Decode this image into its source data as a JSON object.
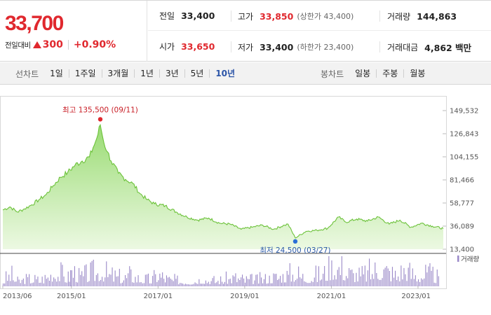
{
  "quote": {
    "price": "33,700",
    "change_label": "전일대비",
    "change_amount": "300",
    "change_percent": "+0.90%",
    "direction": "up",
    "up_color": "#e0282e"
  },
  "stats": {
    "prev_close": {
      "label": "전일",
      "value": "33,400"
    },
    "high": {
      "label": "고가",
      "value": "33,850",
      "sub": "(상한가 43,400)"
    },
    "volume": {
      "label": "거래량",
      "value": "144,863"
    },
    "open": {
      "label": "시가",
      "value": "33,650"
    },
    "low": {
      "label": "저가",
      "value": "33,400",
      "sub": "(하한가 23,400)"
    },
    "trade_value": {
      "label": "거래대금",
      "value": "4,862 백만"
    }
  },
  "line_tabs": {
    "title": "선차트",
    "items": [
      "1일",
      "1주일",
      "3개월",
      "1년",
      "3년",
      "5년",
      "10년"
    ],
    "active": "10년"
  },
  "candle_tabs": {
    "title": "봉차트",
    "items": [
      "일봉",
      "주봉",
      "월봉"
    ]
  },
  "chart_data": {
    "type": "area",
    "period": "10년",
    "y_ticks": [
      "149,532",
      "126,843",
      "104,155",
      "81,466",
      "58,777",
      "36,089",
      "13,400"
    ],
    "ylim": [
      13400,
      149532
    ],
    "x_ticks": [
      "2013/06",
      "2015/01",
      "2017/01",
      "2019/01",
      "2021/01",
      "2023/01"
    ],
    "xlim": [
      "2013/06",
      "2023/08"
    ],
    "high_annotation": "최고 135,500 (09/11)",
    "low_annotation": "최저 24,500 (03/27)",
    "high_point": {
      "date": "2015/09",
      "value": 135500
    },
    "low_point": {
      "date": "2020/03",
      "value": 24500
    },
    "volume_legend": "거래량",
    "line_color": "#6cc23a",
    "fill_color": "#aee28a",
    "volume_color": "#9a88c8",
    "series": [
      {
        "values": [
          [
            "2013/06",
            52000
          ],
          [
            "2013/08",
            55000
          ],
          [
            "2013/10",
            50000
          ],
          [
            "2013/12",
            53000
          ],
          [
            "2014/02",
            57000
          ],
          [
            "2014/04",
            62000
          ],
          [
            "2014/06",
            67000
          ],
          [
            "2014/08",
            76000
          ],
          [
            "2014/10",
            84000
          ],
          [
            "2014/12",
            89000
          ],
          [
            "2015/02",
            96000
          ],
          [
            "2015/04",
            100000
          ],
          [
            "2015/06",
            104000
          ],
          [
            "2015/07",
            113000
          ],
          [
            "2015/08",
            122000
          ],
          [
            "2015/09",
            135500
          ],
          [
            "2015/10",
            118000
          ],
          [
            "2015/11",
            109000
          ],
          [
            "2015/12",
            100000
          ],
          [
            "2016/02",
            88000
          ],
          [
            "2016/04",
            82000
          ],
          [
            "2016/06",
            78000
          ],
          [
            "2016/08",
            68000
          ],
          [
            "2016/10",
            62000
          ],
          [
            "2016/12",
            58000
          ],
          [
            "2017/03",
            56000
          ],
          [
            "2017/06",
            50000
          ],
          [
            "2017/09",
            45000
          ],
          [
            "2017/12",
            42000
          ],
          [
            "2018/03",
            44000
          ],
          [
            "2018/06",
            39000
          ],
          [
            "2018/09",
            38000
          ],
          [
            "2018/12",
            33000
          ],
          [
            "2019/03",
            35000
          ],
          [
            "2019/06",
            37000
          ],
          [
            "2019/09",
            33000
          ],
          [
            "2019/12",
            37000
          ],
          [
            "2020/01",
            38000
          ],
          [
            "2020/03",
            24500
          ],
          [
            "2020/06",
            31000
          ],
          [
            "2020/09",
            32000
          ],
          [
            "2020/12",
            34000
          ],
          [
            "2021/03",
            45000
          ],
          [
            "2021/05",
            40000
          ],
          [
            "2021/08",
            43000
          ],
          [
            "2021/11",
            41000
          ],
          [
            "2022/02",
            45000
          ],
          [
            "2022/05",
            38000
          ],
          [
            "2022/08",
            42000
          ],
          [
            "2022/11",
            35000
          ],
          [
            "2023/02",
            39000
          ],
          [
            "2023/05",
            36000
          ],
          [
            "2023/08",
            33700
          ]
        ]
      }
    ],
    "volume_series": {
      "name": "거래량",
      "values": [
        [
          "2013/06",
          120000
        ],
        [
          "2013/08",
          260000
        ],
        [
          "2013/10",
          110000
        ],
        [
          "2013/12",
          150000
        ],
        [
          "2014/02",
          170000
        ],
        [
          "2014/04",
          140000
        ],
        [
          "2014/06",
          210000
        ],
        [
          "2014/08",
          330000
        ],
        [
          "2014/10",
          280000
        ],
        [
          "2014/12",
          190000
        ],
        [
          "2015/01",
          390000
        ],
        [
          "2015/03",
          210000
        ],
        [
          "2015/05",
          250000
        ],
        [
          "2015/07",
          300000
        ],
        [
          "2015/09",
          350000
        ],
        [
          "2015/11",
          260000
        ],
        [
          "2016/01",
          230000
        ],
        [
          "2016/03",
          180000
        ],
        [
          "2016/05",
          250000
        ],
        [
          "2016/07",
          200000
        ],
        [
          "2016/09",
          160000
        ],
        [
          "2016/11",
          140000
        ],
        [
          "2017/01",
          280000
        ],
        [
          "2017/04",
          150000
        ],
        [
          "2017/07",
          120000
        ],
        [
          "2017/10",
          110000
        ],
        [
          "2018/01",
          170000
        ],
        [
          "2018/04",
          130000
        ],
        [
          "2018/07",
          140000
        ],
        [
          "2018/10",
          200000
        ],
        [
          "2019/01",
          150000
        ],
        [
          "2019/04",
          140000
        ],
        [
          "2019/07",
          170000
        ],
        [
          "2019/10",
          220000
        ],
        [
          "2020/01",
          260000
        ],
        [
          "2020/03",
          310000
        ],
        [
          "2020/05",
          230000
        ],
        [
          "2020/07",
          210000
        ],
        [
          "2020/09",
          250000
        ],
        [
          "2020/11",
          300000
        ],
        [
          "2021/01",
          420000
        ],
        [
          "2021/03",
          460000
        ],
        [
          "2021/05",
          330000
        ],
        [
          "2021/07",
          280000
        ],
        [
          "2021/09",
          240000
        ],
        [
          "2021/11",
          300000
        ],
        [
          "2022/01",
          360000
        ],
        [
          "2022/03",
          420000
        ],
        [
          "2022/05",
          330000
        ],
        [
          "2022/07",
          250000
        ],
        [
          "2022/09",
          380000
        ],
        [
          "2022/11",
          300000
        ],
        [
          "2023/01",
          260000
        ],
        [
          "2023/03",
          280000
        ],
        [
          "2023/05",
          240000
        ],
        [
          "2023/07",
          160000
        ]
      ]
    }
  }
}
